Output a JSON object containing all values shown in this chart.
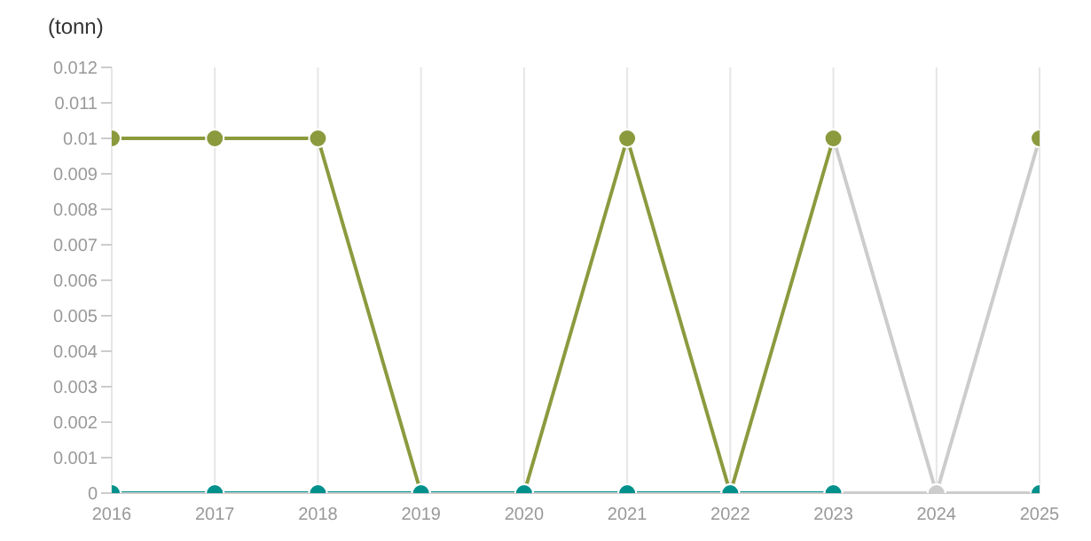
{
  "chart_data": {
    "type": "line",
    "ylabel": "(tonn)",
    "x": [
      2016,
      2017,
      2018,
      2019,
      2020,
      2021,
      2022,
      2023,
      2024,
      2025
    ],
    "series": [
      {
        "color": "#cccccc",
        "values": [
          null,
          null,
          null,
          null,
          null,
          null,
          null,
          0.01,
          0,
          0.01
        ]
      },
      {
        "color": "#cccccc",
        "values": [
          null,
          null,
          null,
          null,
          null,
          null,
          null,
          0,
          0,
          0
        ]
      },
      {
        "color": "#8c9a3e",
        "values": [
          0.01,
          0.01,
          0.01,
          0,
          0,
          0.01,
          0,
          0.01,
          null,
          0.01
        ]
      },
      {
        "color": "#00918d",
        "values": [
          0,
          0,
          0,
          0,
          0,
          0,
          0,
          0,
          null,
          0
        ]
      }
    ],
    "xlim": [
      2016,
      2025
    ],
    "xticks": [
      2016,
      2017,
      2018,
      2019,
      2020,
      2021,
      2022,
      2023,
      2024,
      2025
    ],
    "ylim": [
      0,
      0.012
    ],
    "yticks": [
      0,
      0.001,
      0.002,
      0.003,
      0.004,
      0.005,
      0.006,
      0.007,
      0.008,
      0.009,
      0.01,
      0.011,
      0.012
    ],
    "grid": "x",
    "marker": "circle",
    "line_style": "solid"
  }
}
